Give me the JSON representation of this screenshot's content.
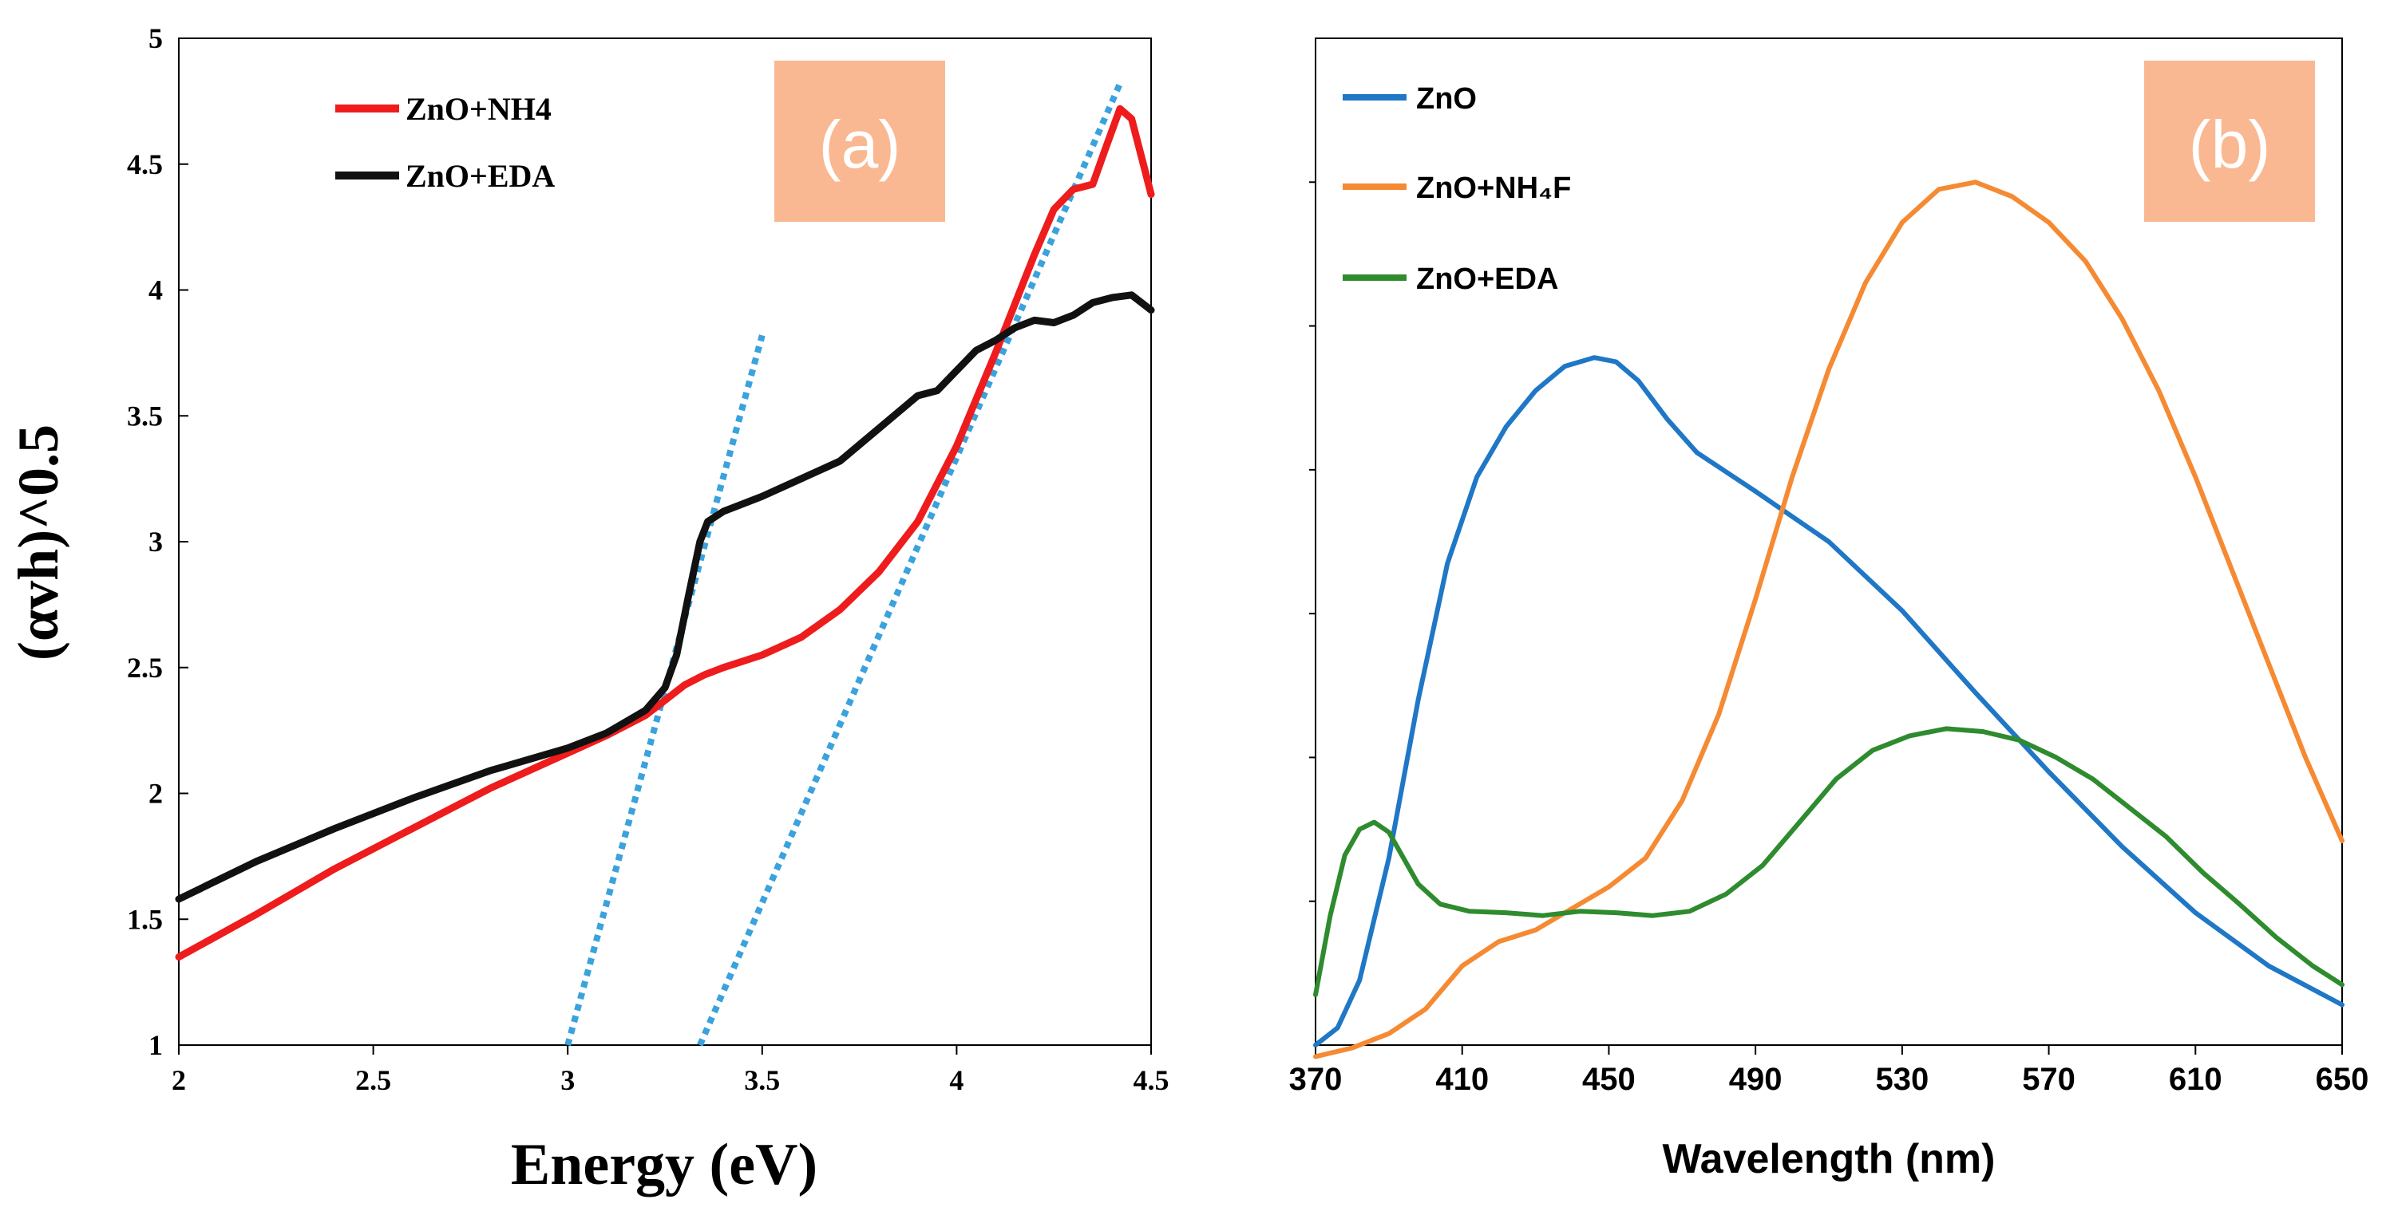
{
  "chart_data": [
    {
      "type": "line",
      "panel_label": "(a)",
      "xlabel": "Energy (eV)",
      "ylabel": "(αvh)^0.5",
      "xlim": [
        2,
        4.5
      ],
      "ylim": [
        1,
        5
      ],
      "x_ticks": [
        "2",
        "2.5",
        "3",
        "3.5",
        "4",
        "4.5"
      ],
      "y_ticks": [
        "1",
        "1.5",
        "2",
        "2.5",
        "3",
        "3.5",
        "4",
        "4.5",
        "5"
      ],
      "colors": {
        "label_box": "#f9b891",
        "fit_line": "#3aa2dc"
      },
      "series": [
        {
          "name": "ZnO+NH4",
          "color": "#ee1c1c",
          "x": [
            2.0,
            2.2,
            2.4,
            2.6,
            2.8,
            3.0,
            3.1,
            3.2,
            3.25,
            3.3,
            3.35,
            3.4,
            3.5,
            3.6,
            3.7,
            3.8,
            3.9,
            4.0,
            4.1,
            4.2,
            4.25,
            4.3,
            4.35,
            4.38,
            4.42,
            4.45,
            4.48,
            4.5
          ],
          "y": [
            1.35,
            1.52,
            1.7,
            1.86,
            2.02,
            2.16,
            2.23,
            2.31,
            2.37,
            2.43,
            2.47,
            2.5,
            2.55,
            2.62,
            2.73,
            2.88,
            3.08,
            3.38,
            3.75,
            4.14,
            4.32,
            4.4,
            4.42,
            4.55,
            4.72,
            4.68,
            4.5,
            4.38
          ]
        },
        {
          "name": "ZnO+EDA",
          "color": "#111111",
          "x": [
            2.0,
            2.2,
            2.4,
            2.6,
            2.8,
            3.0,
            3.1,
            3.2,
            3.25,
            3.28,
            3.31,
            3.34,
            3.36,
            3.4,
            3.5,
            3.6,
            3.7,
            3.8,
            3.9,
            3.95,
            4.0,
            4.05,
            4.1,
            4.15,
            4.2,
            4.25,
            4.3,
            4.35,
            4.4,
            4.45,
            4.5
          ],
          "y": [
            1.58,
            1.73,
            1.86,
            1.98,
            2.09,
            2.18,
            2.24,
            2.33,
            2.42,
            2.55,
            2.78,
            3.0,
            3.08,
            3.12,
            3.18,
            3.25,
            3.32,
            3.45,
            3.58,
            3.6,
            3.68,
            3.76,
            3.8,
            3.85,
            3.88,
            3.87,
            3.9,
            3.95,
            3.97,
            3.98,
            3.92
          ]
        }
      ],
      "fit_lines": [
        {
          "x": [
            3.0,
            3.5
          ],
          "y": [
            1.0,
            3.82
          ]
        },
        {
          "x": [
            3.34,
            4.42
          ],
          "y": [
            1.0,
            4.82
          ]
        }
      ]
    },
    {
      "type": "line",
      "panel_label": "(b)",
      "xlabel": "Wavelength (nm)",
      "ylabel": "",
      "xlim": [
        370,
        650
      ],
      "ylim": [
        0,
        7
      ],
      "x_ticks": [
        "370",
        "410",
        "450",
        "490",
        "530",
        "570",
        "610",
        "650"
      ],
      "colors": {
        "label_box": "#f9b891"
      },
      "series": [
        {
          "name": "ZnO",
          "color": "#1f77c6",
          "x": [
            370,
            376,
            382,
            390,
            398,
            406,
            414,
            422,
            430,
            438,
            446,
            452,
            458,
            466,
            474,
            490,
            510,
            530,
            550,
            570,
            590,
            610,
            630,
            650
          ],
          "y": [
            0.0,
            0.12,
            0.45,
            1.3,
            2.4,
            3.35,
            3.95,
            4.3,
            4.55,
            4.72,
            4.78,
            4.75,
            4.62,
            4.35,
            4.12,
            3.85,
            3.5,
            3.02,
            2.45,
            1.9,
            1.38,
            0.92,
            0.55,
            0.28
          ]
        },
        {
          "name": "ZnO+NH₄F",
          "color": "#f58a33",
          "x": [
            370,
            380,
            390,
            400,
            410,
            420,
            430,
            440,
            450,
            460,
            470,
            480,
            490,
            500,
            510,
            520,
            530,
            540,
            550,
            560,
            570,
            580,
            590,
            600,
            610,
            620,
            630,
            640,
            650
          ],
          "y": [
            -0.08,
            -0.02,
            0.08,
            0.25,
            0.55,
            0.72,
            0.8,
            0.95,
            1.1,
            1.3,
            1.7,
            2.3,
            3.1,
            3.95,
            4.7,
            5.3,
            5.72,
            5.95,
            6.0,
            5.9,
            5.72,
            5.45,
            5.05,
            4.55,
            3.95,
            3.3,
            2.65,
            2.0,
            1.42
          ]
        },
        {
          "name": "ZnO+EDA",
          "color": "#2e8b2e",
          "x": [
            370,
            374,
            378,
            382,
            386,
            390,
            394,
            398,
            404,
            412,
            422,
            432,
            442,
            452,
            462,
            472,
            482,
            492,
            502,
            512,
            522,
            532,
            542,
            552,
            562,
            572,
            582,
            592,
            602,
            612,
            622,
            632,
            642,
            650
          ],
          "y": [
            0.35,
            0.9,
            1.32,
            1.5,
            1.55,
            1.48,
            1.3,
            1.12,
            0.98,
            0.93,
            0.92,
            0.9,
            0.93,
            0.92,
            0.9,
            0.93,
            1.05,
            1.25,
            1.55,
            1.85,
            2.05,
            2.15,
            2.2,
            2.18,
            2.12,
            2.0,
            1.85,
            1.65,
            1.45,
            1.2,
            0.98,
            0.75,
            0.55,
            0.42
          ]
        }
      ]
    }
  ]
}
